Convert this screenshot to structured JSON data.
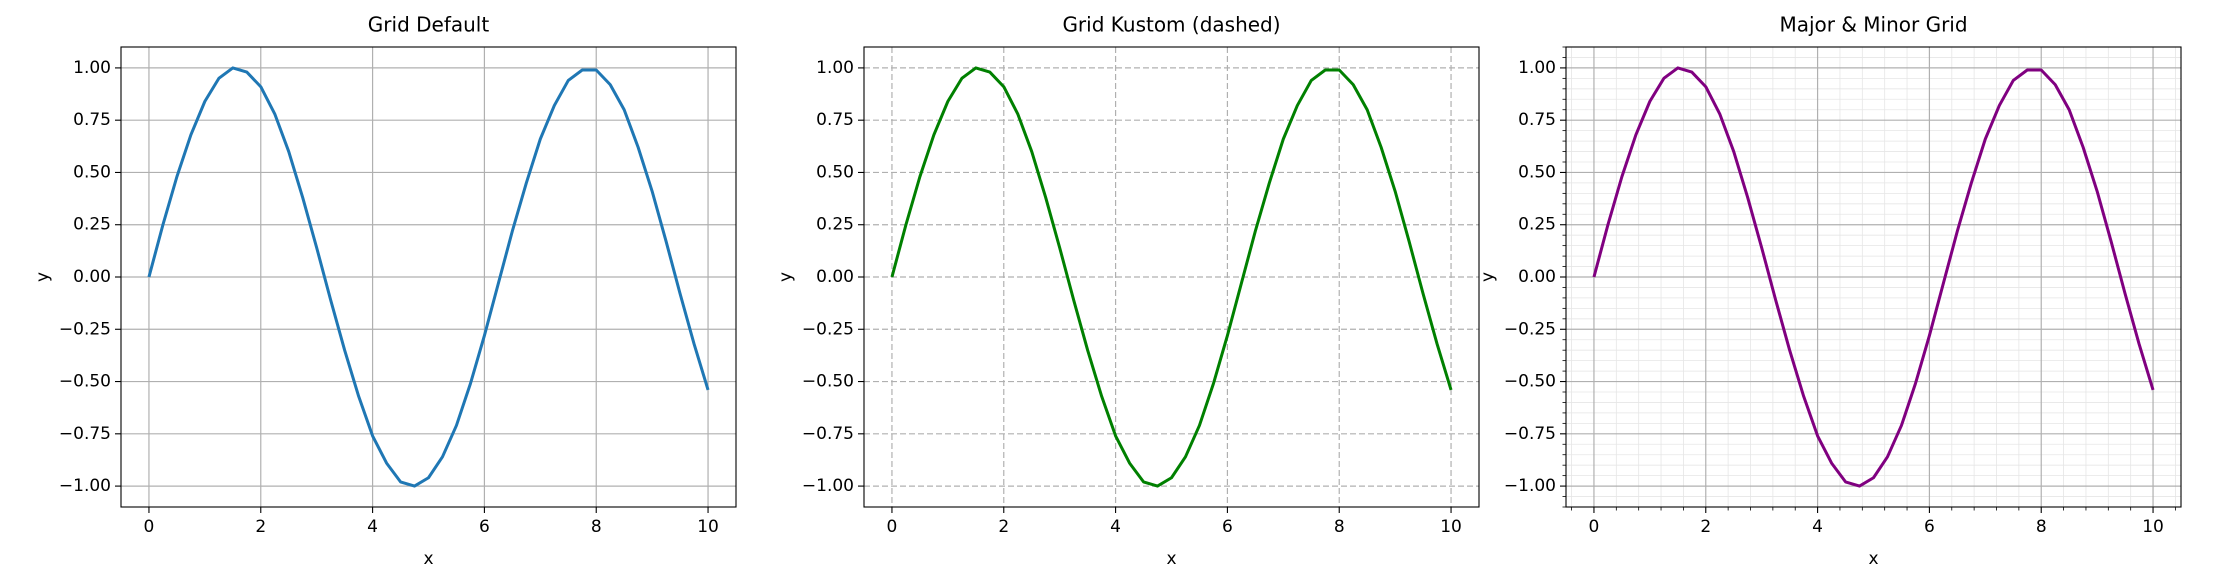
{
  "chart_data": [
    {
      "type": "line",
      "title": "Grid Default",
      "xlabel": "x",
      "ylabel": "y",
      "x": [
        0,
        0.25,
        0.5,
        0.75,
        1,
        1.25,
        1.5,
        1.75,
        2,
        2.25,
        2.5,
        2.75,
        3,
        3.25,
        3.5,
        3.75,
        4,
        4.25,
        4.5,
        4.75,
        5,
        5.25,
        5.5,
        5.75,
        6,
        6.25,
        6.5,
        6.75,
        7,
        7.25,
        7.5,
        7.75,
        8,
        8.25,
        8.5,
        8.75,
        9,
        9.25,
        9.5,
        9.75,
        10
      ],
      "series": [
        {
          "color": "#1f77b4",
          "values": [
            0,
            0.25,
            0.48,
            0.68,
            0.84,
            0.95,
            1.0,
            0.98,
            0.91,
            0.78,
            0.6,
            0.38,
            0.14,
            -0.11,
            -0.35,
            -0.57,
            -0.76,
            -0.89,
            -0.98,
            -1.0,
            -0.96,
            -0.86,
            -0.71,
            -0.51,
            -0.28,
            -0.03,
            0.22,
            0.45,
            0.66,
            0.82,
            0.94,
            0.99,
            0.99,
            0.92,
            0.8,
            0.62,
            0.41,
            0.17,
            -0.08,
            -0.32,
            -0.54
          ]
        }
      ],
      "xlim": [
        -0.5,
        10.5
      ],
      "ylim": [
        -1.1,
        1.1
      ],
      "xticks": [
        0,
        2,
        4,
        6,
        8,
        10
      ],
      "yticks": [
        {
          "value": -1,
          "label": "−1.00"
        },
        {
          "value": -0.75,
          "label": "−0.75"
        },
        {
          "value": -0.5,
          "label": "−0.50"
        },
        {
          "value": -0.25,
          "label": "−0.25"
        },
        {
          "value": 0,
          "label": "0.00"
        },
        {
          "value": 0.25,
          "label": "0.25"
        },
        {
          "value": 0.5,
          "label": "0.50"
        },
        {
          "value": 0.75,
          "label": "0.75"
        },
        {
          "value": 1,
          "label": "1.00"
        }
      ],
      "grid": true,
      "grid_style": "solid"
    },
    {
      "type": "line",
      "title": "Grid Kustom (dashed)",
      "xlabel": "x",
      "ylabel": "y",
      "x": [
        0,
        0.25,
        0.5,
        0.75,
        1,
        1.25,
        1.5,
        1.75,
        2,
        2.25,
        2.5,
        2.75,
        3,
        3.25,
        3.5,
        3.75,
        4,
        4.25,
        4.5,
        4.75,
        5,
        5.25,
        5.5,
        5.75,
        6,
        6.25,
        6.5,
        6.75,
        7,
        7.25,
        7.5,
        7.75,
        8,
        8.25,
        8.5,
        8.75,
        9,
        9.25,
        9.5,
        9.75,
        10
      ],
      "series": [
        {
          "color": "#008000",
          "values": [
            0,
            0.25,
            0.48,
            0.68,
            0.84,
            0.95,
            1.0,
            0.98,
            0.91,
            0.78,
            0.6,
            0.38,
            0.14,
            -0.11,
            -0.35,
            -0.57,
            -0.76,
            -0.89,
            -0.98,
            -1.0,
            -0.96,
            -0.86,
            -0.71,
            -0.51,
            -0.28,
            -0.03,
            0.22,
            0.45,
            0.66,
            0.82,
            0.94,
            0.99,
            0.99,
            0.92,
            0.8,
            0.62,
            0.41,
            0.17,
            -0.08,
            -0.32,
            -0.54
          ]
        }
      ],
      "xlim": [
        -0.5,
        10.5
      ],
      "ylim": [
        -1.1,
        1.1
      ],
      "xticks": [
        0,
        2,
        4,
        6,
        8,
        10
      ],
      "yticks": [
        {
          "value": -1,
          "label": "−1.00"
        },
        {
          "value": -0.75,
          "label": "−0.75"
        },
        {
          "value": -0.5,
          "label": "−0.50"
        },
        {
          "value": -0.25,
          "label": "−0.25"
        },
        {
          "value": 0,
          "label": "0.00"
        },
        {
          "value": 0.25,
          "label": "0.25"
        },
        {
          "value": 0.5,
          "label": "0.50"
        },
        {
          "value": 0.75,
          "label": "0.75"
        },
        {
          "value": 1,
          "label": "1.00"
        }
      ],
      "grid": true,
      "grid_style": "dashed"
    },
    {
      "type": "line",
      "title": "Major & Minor Grid",
      "xlabel": "x",
      "ylabel": "y",
      "x": [
        0,
        0.25,
        0.5,
        0.75,
        1,
        1.25,
        1.5,
        1.75,
        2,
        2.25,
        2.5,
        2.75,
        3,
        3.25,
        3.5,
        3.75,
        4,
        4.25,
        4.5,
        4.75,
        5,
        5.25,
        5.5,
        5.75,
        6,
        6.25,
        6.5,
        6.75,
        7,
        7.25,
        7.5,
        7.75,
        8,
        8.25,
        8.5,
        8.75,
        9,
        9.25,
        9.5,
        9.75,
        10
      ],
      "series": [
        {
          "color": "#800080",
          "values": [
            0,
            0.25,
            0.48,
            0.68,
            0.84,
            0.95,
            1.0,
            0.98,
            0.91,
            0.78,
            0.6,
            0.38,
            0.14,
            -0.11,
            -0.35,
            -0.57,
            -0.76,
            -0.89,
            -0.98,
            -1.0,
            -0.96,
            -0.86,
            -0.71,
            -0.51,
            -0.28,
            -0.03,
            0.22,
            0.45,
            0.66,
            0.82,
            0.94,
            0.99,
            0.99,
            0.92,
            0.8,
            0.62,
            0.41,
            0.17,
            -0.08,
            -0.32,
            -0.54
          ]
        }
      ],
      "xlim": [
        -0.5,
        10.5
      ],
      "ylim": [
        -1.1,
        1.1
      ],
      "xticks": [
        0,
        2,
        4,
        6,
        8,
        10
      ],
      "yticks": [
        {
          "value": -1,
          "label": "−1.00"
        },
        {
          "value": -0.75,
          "label": "−0.75"
        },
        {
          "value": -0.5,
          "label": "−0.50"
        },
        {
          "value": -0.25,
          "label": "−0.25"
        },
        {
          "value": 0,
          "label": "0.00"
        },
        {
          "value": 0.25,
          "label": "0.25"
        },
        {
          "value": 0.5,
          "label": "0.50"
        },
        {
          "value": 0.75,
          "label": "0.75"
        },
        {
          "value": 1,
          "label": "1.00"
        }
      ],
      "minor_xticks": [
        -0.4,
        0.4,
        0.8,
        1.2,
        1.6,
        2.4,
        2.8,
        3.2,
        3.6,
        4.4,
        4.8,
        5.2,
        5.6,
        6.4,
        6.8,
        7.2,
        7.6,
        8.4,
        8.8,
        9.2,
        9.6,
        10.4
      ],
      "minor_yticks": [
        -1.1,
        -1.05,
        -0.95,
        -0.9,
        -0.85,
        -0.8,
        -0.7,
        -0.65,
        -0.6,
        -0.55,
        -0.45,
        -0.4,
        -0.35,
        -0.3,
        -0.2,
        -0.15,
        -0.1,
        -0.05,
        0.05,
        0.1,
        0.15,
        0.2,
        0.3,
        0.35,
        0.4,
        0.45,
        0.55,
        0.6,
        0.65,
        0.7,
        0.8,
        0.85,
        0.9,
        0.95,
        1.05,
        1.1
      ],
      "grid": true,
      "grid_style": "solid",
      "minor_grid": true
    }
  ]
}
